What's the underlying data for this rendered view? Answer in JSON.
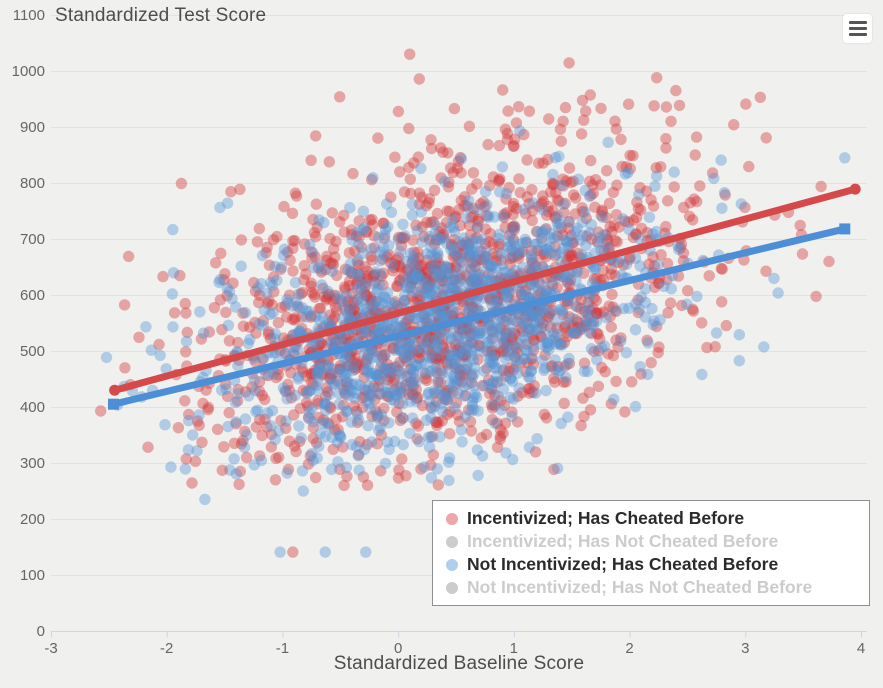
{
  "colors": {
    "background": "#f0f0ee",
    "grid": "#e2e2e0",
    "axis_line": "#ccd6eb",
    "tick_label": "#666666",
    "axis_title": "#4d4d4d",
    "legend_border": "#8f8f8f",
    "legend_bg": "#ffffff",
    "legend_active_text": "#2b2b2b",
    "legend_hidden": "#cccccc",
    "menu_icon": "#555555"
  },
  "toolbar": {
    "context_menu_icon": "hamburger"
  },
  "chart_data": {
    "type": "scatter",
    "title": "",
    "xlabel": "Standardized Baseline Score",
    "ylabel": "Standardized Test Score",
    "grid": true,
    "legend_position": "inside-bottom-right",
    "x_axis": {
      "title": "Standardized Baseline Score",
      "min": -3,
      "max": 4.05,
      "ticks": [
        -3,
        -2,
        -1,
        0,
        1,
        2,
        3,
        4
      ]
    },
    "y_axis": {
      "title": "Standardized Test Score",
      "title_position": "top-left",
      "min": 0,
      "max": 1100,
      "ticks": [
        0,
        100,
        200,
        300,
        400,
        500,
        600,
        700,
        800,
        900,
        1000,
        1100
      ]
    },
    "point_radius": 5.7,
    "series": [
      {
        "name": "Incentivized; Has Cheated Before",
        "visible": true,
        "color": "#d43c3f",
        "point_opacity": 0.42,
        "marker": "circle",
        "regression_line": {
          "x1": -2.45,
          "y1": 430,
          "x2": 3.95,
          "y2": 789,
          "width": 7,
          "color": "#d6494a",
          "endpoint_marker": "circle"
        },
        "scatter_generator": {
          "seed": 7,
          "n": 1500,
          "x_mean": 0.42,
          "x_sd": 1.07,
          "x_min": -2.6,
          "x_max": 3.95,
          "y_slope": 56.1,
          "y_intercept": 567,
          "y_sd": 127,
          "y_min": 258,
          "y_max": 1032
        }
      },
      {
        "name": "Incentivized; Has Not Cheated Before",
        "visible": false,
        "color": "#cccccc"
      },
      {
        "name": "Not Incentivized; Has Cheated Before",
        "visible": true,
        "color": "#5293d4",
        "point_opacity": 0.4,
        "marker": "circle",
        "regression_line": {
          "x1": -2.46,
          "y1": 405,
          "x2": 3.86,
          "y2": 718,
          "width": 7,
          "color": "#4c8fd6",
          "endpoint_marker": "square"
        },
        "scatter_generator": {
          "seed": 13,
          "n": 1180,
          "x_mean": 0.38,
          "x_sd": 1.0,
          "x_min": -2.55,
          "x_max": 3.88,
          "y_slope": 49.5,
          "y_intercept": 527,
          "y_sd": 108,
          "y_min": 268,
          "y_max": 912
        }
      },
      {
        "name": "Not Incentivized; Has Not Cheated Before",
        "visible": false,
        "color": "#cccccc"
      }
    ],
    "outlier_points": [
      {
        "series": 2,
        "x": -1.02,
        "y": 141
      },
      {
        "series": 0,
        "x": -0.91,
        "y": 141
      },
      {
        "series": 2,
        "x": -0.63,
        "y": 141
      },
      {
        "series": 2,
        "x": -0.28,
        "y": 141
      },
      {
        "series": 2,
        "x": -1.67,
        "y": 235
      },
      {
        "series": 0,
        "x": -1.52,
        "y": 287
      },
      {
        "series": 0,
        "x": -1.06,
        "y": 270
      },
      {
        "series": 2,
        "x": -0.82,
        "y": 250
      },
      {
        "series": 2,
        "x": 3.86,
        "y": 845
      },
      {
        "series": 0,
        "x": 3.13,
        "y": 953
      },
      {
        "series": 0,
        "x": 0.1,
        "y": 1030
      },
      {
        "series": 0,
        "x": 2.4,
        "y": 965
      },
      {
        "series": 0,
        "x": 2.9,
        "y": 904
      }
    ]
  }
}
